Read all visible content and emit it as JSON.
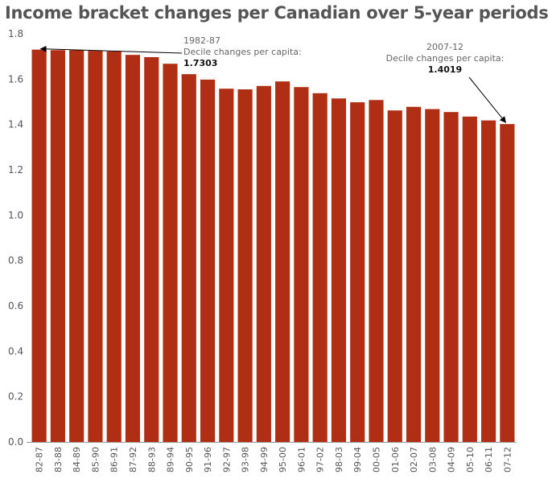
{
  "chart_data": {
    "type": "bar",
    "title": "Income bracket changes per Canadian over 5-year periods",
    "categories": [
      "82-87",
      "83-88",
      "84-89",
      "85-90",
      "86-91",
      "87-92",
      "88-93",
      "89-94",
      "90-95",
      "91-96",
      "92-97",
      "93-98",
      "94-99",
      "95-00",
      "96-01",
      "97-02",
      "98-03",
      "99-04",
      "00-05",
      "01-06",
      "02-07",
      "03-08",
      "04-09",
      "05-10",
      "06-11",
      "07-12"
    ],
    "values": [
      1.7303,
      1.728,
      1.728,
      1.725,
      1.722,
      1.707,
      1.697,
      1.668,
      1.622,
      1.598,
      1.558,
      1.555,
      1.57,
      1.59,
      1.565,
      1.538,
      1.515,
      1.498,
      1.508,
      1.462,
      1.478,
      1.468,
      1.455,
      1.435,
      1.418,
      1.4019
    ],
    "ylim": [
      0,
      1.8
    ],
    "yticks": [
      "0.0",
      "0.2",
      "0.4",
      "0.6",
      "0.8",
      "1.0",
      "1.2",
      "1.4",
      "1.6",
      "1.8"
    ],
    "bar_color": "#b02e13",
    "grid": false,
    "annotations": [
      {
        "period": "1982-87",
        "text": "Decile changes per capita:",
        "value": "1.7303",
        "category_index": 0
      },
      {
        "period": "2007-12",
        "text": "Decile changes per capita:",
        "value": "1.4019",
        "category_index": 25
      }
    ]
  }
}
